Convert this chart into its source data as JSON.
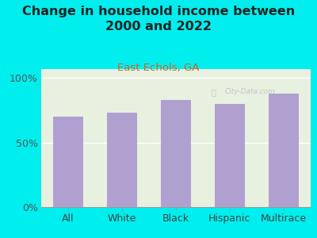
{
  "title": "Change in household income between\n2000 and 2022",
  "subtitle": "East Echols, GA",
  "categories": [
    "All",
    "White",
    "Black",
    "Hispanic",
    "Multirace"
  ],
  "values": [
    70,
    73,
    83,
    80,
    88
  ],
  "bar_color": "#b0a0d0",
  "background_color": "#00EEEE",
  "plot_bg_top": "#e8f0e0",
  "plot_bg_bottom": "#f0f8f0",
  "title_fontsize": 11.5,
  "subtitle_fontsize": 9.5,
  "subtitle_color": "#cc6622",
  "tick_label_fontsize": 9,
  "ytick_labels": [
    "0%",
    "50%",
    "100%"
  ],
  "ytick_values": [
    0,
    50,
    100
  ],
  "ylim": [
    0,
    107
  ],
  "watermark": "City-Data.com",
  "watermark_icon": "ⓘ"
}
